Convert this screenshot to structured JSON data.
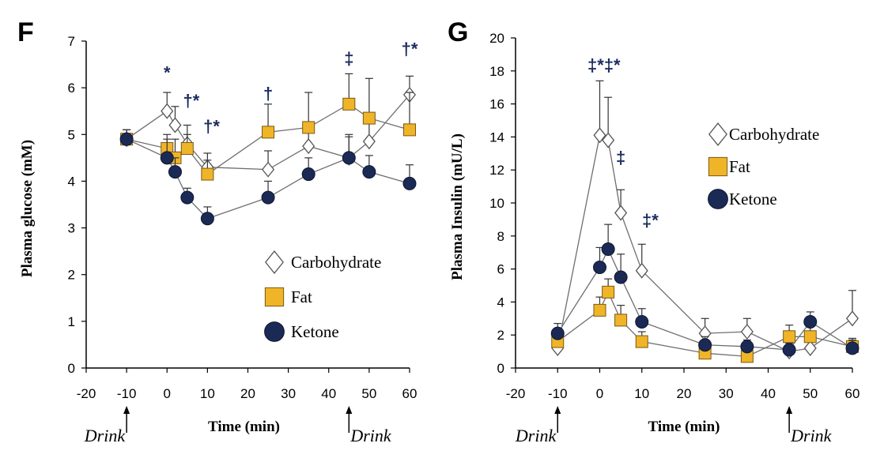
{
  "chart_data": [
    {
      "type": "line",
      "panel_label": "F",
      "xlabel": "Time (min)",
      "ylabel": "Plasma glucose (mM)",
      "xlim": [
        -20,
        60
      ],
      "ylim": [
        0,
        7
      ],
      "xticks": [
        -20,
        -10,
        0,
        10,
        20,
        30,
        40,
        50,
        60
      ],
      "yticks": [
        0,
        1,
        2,
        3,
        4,
        5,
        6,
        7
      ],
      "legend_position": "bottom-right",
      "drink_markers": [
        {
          "x": -10,
          "label": "Drink"
        },
        {
          "x": 45,
          "label": "Drink"
        }
      ],
      "series": [
        {
          "name": "Carbohydrate",
          "marker": "diamond",
          "color": "#ffffff",
          "x": [
            -10,
            0,
            2,
            5,
            10,
            25,
            35,
            45,
            50,
            60
          ],
          "y": [
            4.9,
            5.5,
            5.2,
            4.8,
            4.3,
            4.25,
            4.75,
            4.5,
            4.85,
            5.85
          ],
          "err": [
            0.2,
            0.4,
            0.4,
            0.4,
            0.3,
            0.4,
            0.4,
            0.5,
            0.5,
            0.4
          ]
        },
        {
          "name": "Fat",
          "marker": "square",
          "color": "#f0b429",
          "x": [
            -10,
            0,
            2,
            5,
            10,
            25,
            35,
            45,
            50,
            60
          ],
          "y": [
            4.9,
            4.7,
            4.5,
            4.7,
            4.15,
            5.05,
            5.15,
            5.65,
            5.35,
            5.1
          ],
          "err": [
            0.2,
            0.3,
            0.4,
            0.3,
            0.3,
            0.6,
            0.75,
            0.65,
            0.85,
            0.8
          ]
        },
        {
          "name": "Ketone",
          "marker": "circle",
          "color": "#1b2a55",
          "x": [
            -10,
            0,
            2,
            5,
            10,
            25,
            35,
            45,
            50,
            60
          ],
          "y": [
            4.9,
            4.5,
            4.2,
            3.65,
            3.2,
            3.65,
            4.15,
            4.5,
            4.2,
            3.95
          ],
          "err": [
            0.2,
            0.4,
            0.3,
            0.2,
            0.25,
            0.35,
            0.35,
            0.45,
            0.35,
            0.4
          ]
        }
      ],
      "annotations": [
        {
          "x": 0,
          "y": 6.2,
          "text": "*"
        },
        {
          "x": 6,
          "y": 5.6,
          "text": "†*"
        },
        {
          "x": 11,
          "y": 5.05,
          "text": "†*"
        },
        {
          "x": 25,
          "y": 5.75,
          "text": "†"
        },
        {
          "x": 45,
          "y": 6.5,
          "text": "‡"
        },
        {
          "x": 60,
          "y": 6.7,
          "text": "†*"
        }
      ]
    },
    {
      "type": "line",
      "panel_label": "G",
      "xlabel": "Time (min)",
      "ylabel": "Plasma Insulin (mU/L)",
      "xlim": [
        -20,
        60
      ],
      "ylim": [
        0,
        20
      ],
      "xticks": [
        -20,
        -10,
        0,
        10,
        20,
        30,
        40,
        50,
        60
      ],
      "yticks": [
        0,
        2,
        4,
        6,
        8,
        10,
        12,
        14,
        16,
        18,
        20
      ],
      "legend_position": "top-right",
      "drink_markers": [
        {
          "x": -10,
          "label": "Drink"
        },
        {
          "x": 45,
          "label": "Drink"
        }
      ],
      "series": [
        {
          "name": "Carbohydrate",
          "marker": "diamond",
          "color": "#ffffff",
          "x": [
            -10,
            0,
            2,
            5,
            10,
            25,
            35,
            45,
            50,
            60
          ],
          "y": [
            1.2,
            14.1,
            13.8,
            9.4,
            5.9,
            2.1,
            2.2,
            1.0,
            1.2,
            3.0
          ],
          "err": [
            0.6,
            3.3,
            2.6,
            1.4,
            1.6,
            0.9,
            0.8,
            0.4,
            0.5,
            1.7
          ]
        },
        {
          "name": "Fat",
          "marker": "square",
          "color": "#f0b429",
          "x": [
            -10,
            0,
            2,
            5,
            10,
            25,
            35,
            45,
            50,
            60
          ],
          "y": [
            1.6,
            3.5,
            4.6,
            2.9,
            1.6,
            0.9,
            0.7,
            1.9,
            1.9,
            1.3
          ],
          "err": [
            0.5,
            0.8,
            0.8,
            0.9,
            0.6,
            0.4,
            0.3,
            0.7,
            0.6,
            0.5
          ]
        },
        {
          "name": "Ketone",
          "marker": "circle",
          "color": "#1b2a55",
          "x": [
            -10,
            0,
            2,
            5,
            10,
            25,
            35,
            45,
            50,
            60
          ],
          "y": [
            2.1,
            6.1,
            7.2,
            5.5,
            2.8,
            1.4,
            1.3,
            1.1,
            2.8,
            1.2
          ],
          "err": [
            0.6,
            1.2,
            1.5,
            1.4,
            0.8,
            0.5,
            0.4,
            0.4,
            0.6,
            0.5
          ]
        }
      ],
      "annotations": [
        {
          "x": 1,
          "y": 18.0,
          "text": "‡*‡*"
        },
        {
          "x": 5,
          "y": 12.4,
          "text": "‡"
        },
        {
          "x": 12,
          "y": 8.6,
          "text": "‡*"
        }
      ]
    }
  ]
}
